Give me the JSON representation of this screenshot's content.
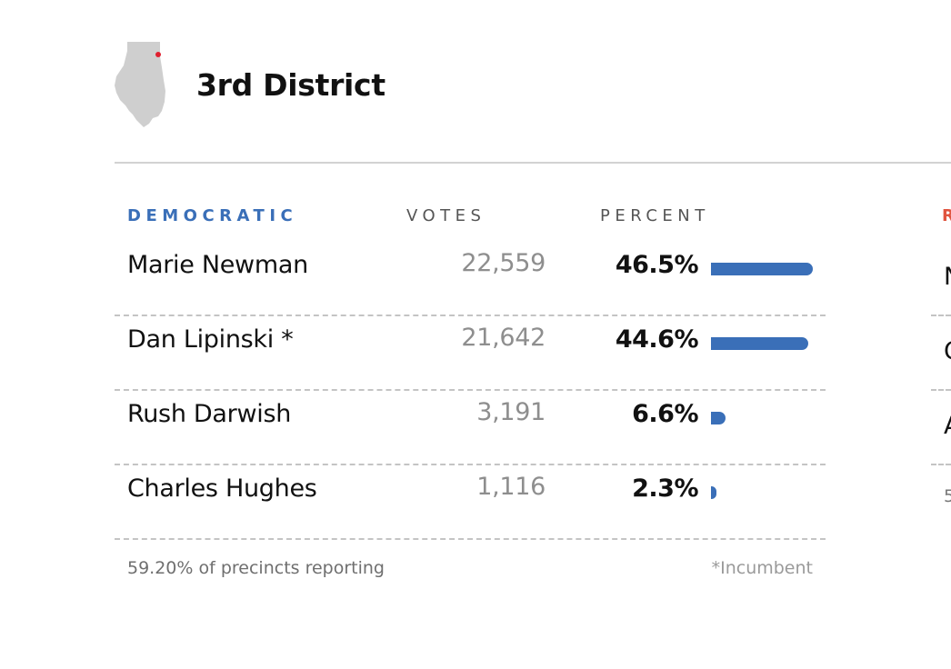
{
  "district": {
    "title": "3rd District",
    "map_icon": "illinois-state-icon",
    "location_marker_color": "#e0202f"
  },
  "colors": {
    "democratic": "#3a6fb8",
    "republican": "#e0543f",
    "bar": "#3a6fb8"
  },
  "columns": {
    "party": "DEMOCRATIC",
    "votes": "VOTES",
    "percent": "PERCENT",
    "next_party_partial": "R"
  },
  "candidates": [
    {
      "name": "Marie Newman",
      "votes": "22,559",
      "percent_label": "46.5%",
      "percent": 46.5
    },
    {
      "name": "Dan Lipinski *",
      "votes": "21,642",
      "percent_label": "44.6%",
      "percent": 44.6
    },
    {
      "name": "Rush Darwish",
      "votes": "3,191",
      "percent_label": "6.6%",
      "percent": 6.6
    },
    {
      "name": "Charles Hughes",
      "votes": "1,116",
      "percent_label": "2.3%",
      "percent": 2.3
    }
  ],
  "next_table_partial": [
    "N",
    "C",
    "A",
    "5"
  ],
  "footer": {
    "precincts": "59.20% of precincts reporting",
    "incumbent_note": "*Incumbent"
  }
}
